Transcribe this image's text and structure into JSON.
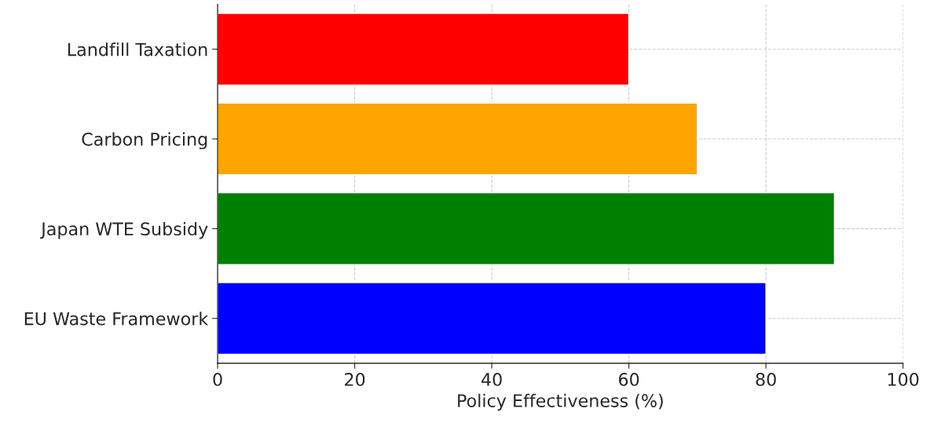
{
  "chart_data": {
    "type": "bar",
    "orientation": "horizontal",
    "xlabel": "Policy Effectiveness (%)",
    "categories": [
      "Landfill Taxation",
      "Carbon Pricing",
      "Japan WTE Subsidy",
      "EU Waste Framework"
    ],
    "values": [
      60,
      70,
      90,
      80
    ],
    "colors": [
      "#ff0000",
      "#ffa500",
      "#008000",
      "#0000ff"
    ],
    "xlim": [
      0,
      100
    ],
    "xticks": [
      0,
      20,
      40,
      60,
      80,
      100
    ],
    "grid": true
  }
}
